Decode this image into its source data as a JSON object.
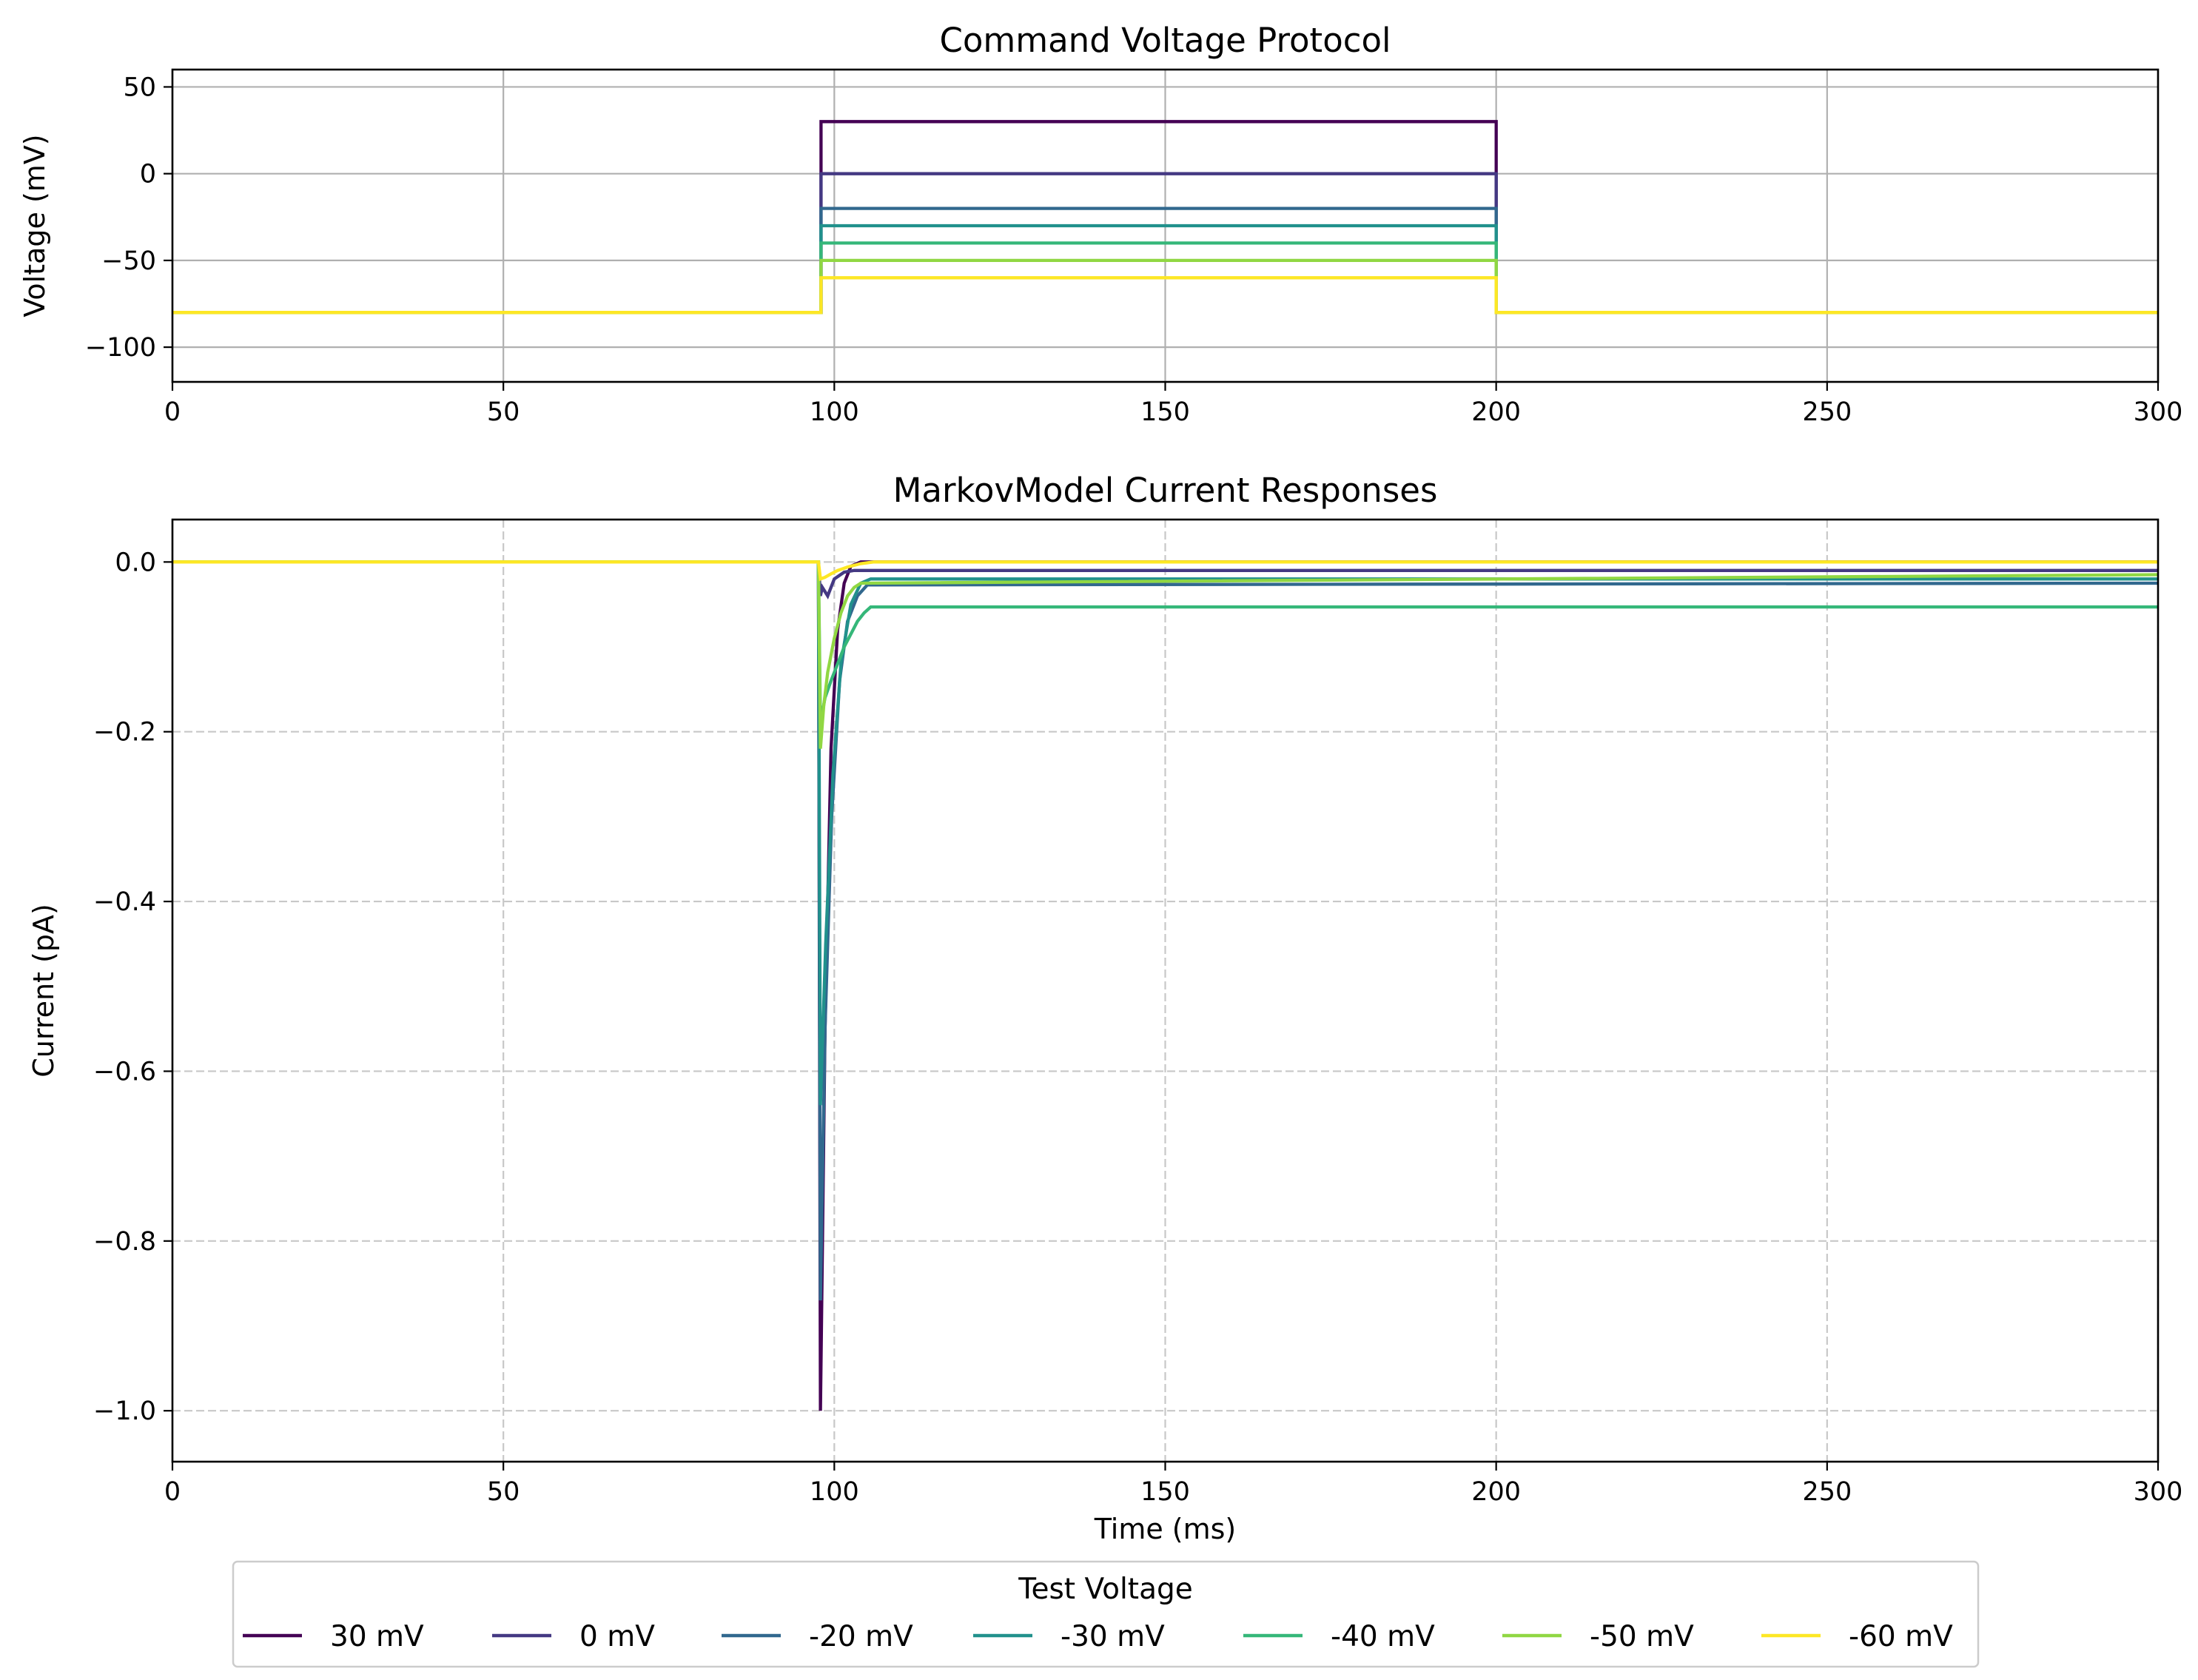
{
  "chart_data": [
    {
      "type": "line",
      "title": "Command Voltage Protocol",
      "xlabel": "",
      "ylabel": "Voltage (mV)",
      "xlim": [
        0,
        300
      ],
      "ylim": [
        -120,
        60
      ],
      "xticks": [
        0,
        50,
        100,
        150,
        200,
        250,
        300
      ],
      "xtick_labels": [
        "0",
        "50",
        "100",
        "150",
        "200",
        "250",
        "300"
      ],
      "yticks": [
        50,
        0,
        -50,
        -100
      ],
      "ytick_labels": [
        "50",
        "0",
        "−50",
        "−100"
      ],
      "grid": "solid",
      "series": [
        {
          "name": "30 mV",
          "color": "#440154",
          "points": [
            [
              0,
              -80
            ],
            [
              98,
              -80
            ],
            [
              98,
              30
            ],
            [
              200,
              30
            ],
            [
              200,
              -80
            ],
            [
              300,
              -80
            ]
          ]
        },
        {
          "name": "0 mV",
          "color": "#443983",
          "points": [
            [
              0,
              -80
            ],
            [
              98,
              -80
            ],
            [
              98,
              0
            ],
            [
              200,
              0
            ],
            [
              200,
              -80
            ],
            [
              300,
              -80
            ]
          ]
        },
        {
          "name": "-20 mV",
          "color": "#31688e",
          "points": [
            [
              0,
              -80
            ],
            [
              98,
              -80
            ],
            [
              98,
              -20
            ],
            [
              200,
              -20
            ],
            [
              200,
              -80
            ],
            [
              300,
              -80
            ]
          ]
        },
        {
          "name": "-30 mV",
          "color": "#21918c",
          "points": [
            [
              0,
              -80
            ],
            [
              98,
              -80
            ],
            [
              98,
              -30
            ],
            [
              200,
              -30
            ],
            [
              200,
              -80
            ],
            [
              300,
              -80
            ]
          ]
        },
        {
          "name": "-40 mV",
          "color": "#35b779",
          "points": [
            [
              0,
              -80
            ],
            [
              98,
              -80
            ],
            [
              98,
              -40
            ],
            [
              200,
              -40
            ],
            [
              200,
              -80
            ],
            [
              300,
              -80
            ]
          ]
        },
        {
          "name": "-50 mV",
          "color": "#90d743",
          "points": [
            [
              0,
              -80
            ],
            [
              98,
              -80
            ],
            [
              98,
              -50
            ],
            [
              200,
              -50
            ],
            [
              200,
              -80
            ],
            [
              300,
              -80
            ]
          ]
        },
        {
          "name": "-60 mV",
          "color": "#fde725",
          "points": [
            [
              0,
              -80
            ],
            [
              98,
              -80
            ],
            [
              98,
              -60
            ],
            [
              200,
              -60
            ],
            [
              200,
              -80
            ],
            [
              300,
              -80
            ]
          ]
        }
      ]
    },
    {
      "type": "line",
      "title": "MarkovModel Current Responses",
      "xlabel": "Time (ms)",
      "ylabel": "Current (pA)",
      "xlim": [
        0,
        300
      ],
      "ylim": [
        -1.06,
        0.05
      ],
      "xticks": [
        0,
        50,
        100,
        150,
        200,
        250,
        300
      ],
      "xtick_labels": [
        "0",
        "50",
        "100",
        "150",
        "200",
        "250",
        "300"
      ],
      "yticks": [
        0,
        -0.2,
        -0.4,
        -0.6,
        -0.8,
        -1.0
      ],
      "ytick_labels": [
        "0.0",
        "−0.2",
        "−0.4",
        "−0.6",
        "−0.8",
        "−1.0"
      ],
      "grid": "dashed",
      "series": [
        {
          "name": "30 mV",
          "color": "#440154",
          "points": [
            [
              0,
              0
            ],
            [
              97.6,
              0
            ],
            [
              97.9,
              -1.0
            ],
            [
              98.6,
              -0.55
            ],
            [
              99.5,
              -0.22
            ],
            [
              100.5,
              -0.08
            ],
            [
              101.5,
              -0.025
            ],
            [
              102.5,
              -0.005
            ],
            [
              104,
              0
            ],
            [
              300,
              0
            ]
          ]
        },
        {
          "name": "0 mV",
          "color": "#443983",
          "points": [
            [
              0,
              0
            ],
            [
              97.6,
              0
            ],
            [
              97.9,
              -0.04
            ],
            [
              98.2,
              -0.03
            ],
            [
              99,
              -0.04
            ],
            [
              100,
              -0.02
            ],
            [
              101.5,
              -0.012
            ],
            [
              103,
              -0.01
            ],
            [
              300,
              -0.01
            ]
          ]
        },
        {
          "name": "-20 mV",
          "color": "#31688e",
          "points": [
            [
              0,
              0
            ],
            [
              97.6,
              0
            ],
            [
              97.9,
              -0.87
            ],
            [
              98.6,
              -0.55
            ],
            [
              99.6,
              -0.3
            ],
            [
              100.8,
              -0.14
            ],
            [
              102,
              -0.07
            ],
            [
              103.5,
              -0.04
            ],
            [
              105,
              -0.027
            ],
            [
              300,
              -0.025
            ]
          ]
        },
        {
          "name": "-30 mV",
          "color": "#21918c",
          "points": [
            [
              0,
              0
            ],
            [
              97.6,
              0
            ],
            [
              97.9,
              -0.64
            ],
            [
              98.7,
              -0.45
            ],
            [
              99.8,
              -0.25
            ],
            [
              101,
              -0.12
            ],
            [
              102.5,
              -0.05
            ],
            [
              104,
              -0.025
            ],
            [
              105.5,
              -0.02
            ],
            [
              300,
              -0.02
            ]
          ]
        },
        {
          "name": "-40 mV",
          "color": "#35b779",
          "points": [
            [
              0,
              0
            ],
            [
              97.6,
              0
            ],
            [
              97.9,
              -0.19
            ],
            [
              98.6,
              -0.16
            ],
            [
              99.5,
              -0.14
            ],
            [
              100.5,
              -0.12
            ],
            [
              101.5,
              -0.1
            ],
            [
              102.5,
              -0.085
            ],
            [
              103.5,
              -0.07
            ],
            [
              104.5,
              -0.06
            ],
            [
              105.5,
              -0.053
            ],
            [
              300,
              -0.053
            ]
          ]
        },
        {
          "name": "-50 mV",
          "color": "#90d743",
          "points": [
            [
              0,
              0
            ],
            [
              97.6,
              0
            ],
            [
              97.9,
              -0.22
            ],
            [
              98.4,
              -0.17
            ],
            [
              99,
              -0.13
            ],
            [
              100,
              -0.09
            ],
            [
              101,
              -0.06
            ],
            [
              102,
              -0.04
            ],
            [
              103,
              -0.03
            ],
            [
              104,
              -0.025
            ],
            [
              300,
              -0.015
            ]
          ]
        },
        {
          "name": "-60 mV",
          "color": "#fde725",
          "points": [
            [
              0,
              0
            ],
            [
              97.6,
              0
            ],
            [
              97.9,
              -0.02
            ],
            [
              98.6,
              -0.018
            ],
            [
              99.5,
              -0.014
            ],
            [
              100.5,
              -0.01
            ],
            [
              102,
              -0.006
            ],
            [
              104,
              -0.002
            ],
            [
              106,
              0
            ],
            [
              300,
              0
            ]
          ]
        }
      ]
    }
  ],
  "legend": {
    "title": "Test Voltage",
    "entries": [
      {
        "label": "30 mV",
        "color": "#440154"
      },
      {
        "label": "0 mV",
        "color": "#443983"
      },
      {
        "label": "-20 mV",
        "color": "#31688e"
      },
      {
        "label": "-30 mV",
        "color": "#21918c"
      },
      {
        "label": "-40 mV",
        "color": "#35b779"
      },
      {
        "label": "-50 mV",
        "color": "#90d743"
      },
      {
        "label": "-60 mV",
        "color": "#fde725"
      }
    ]
  }
}
